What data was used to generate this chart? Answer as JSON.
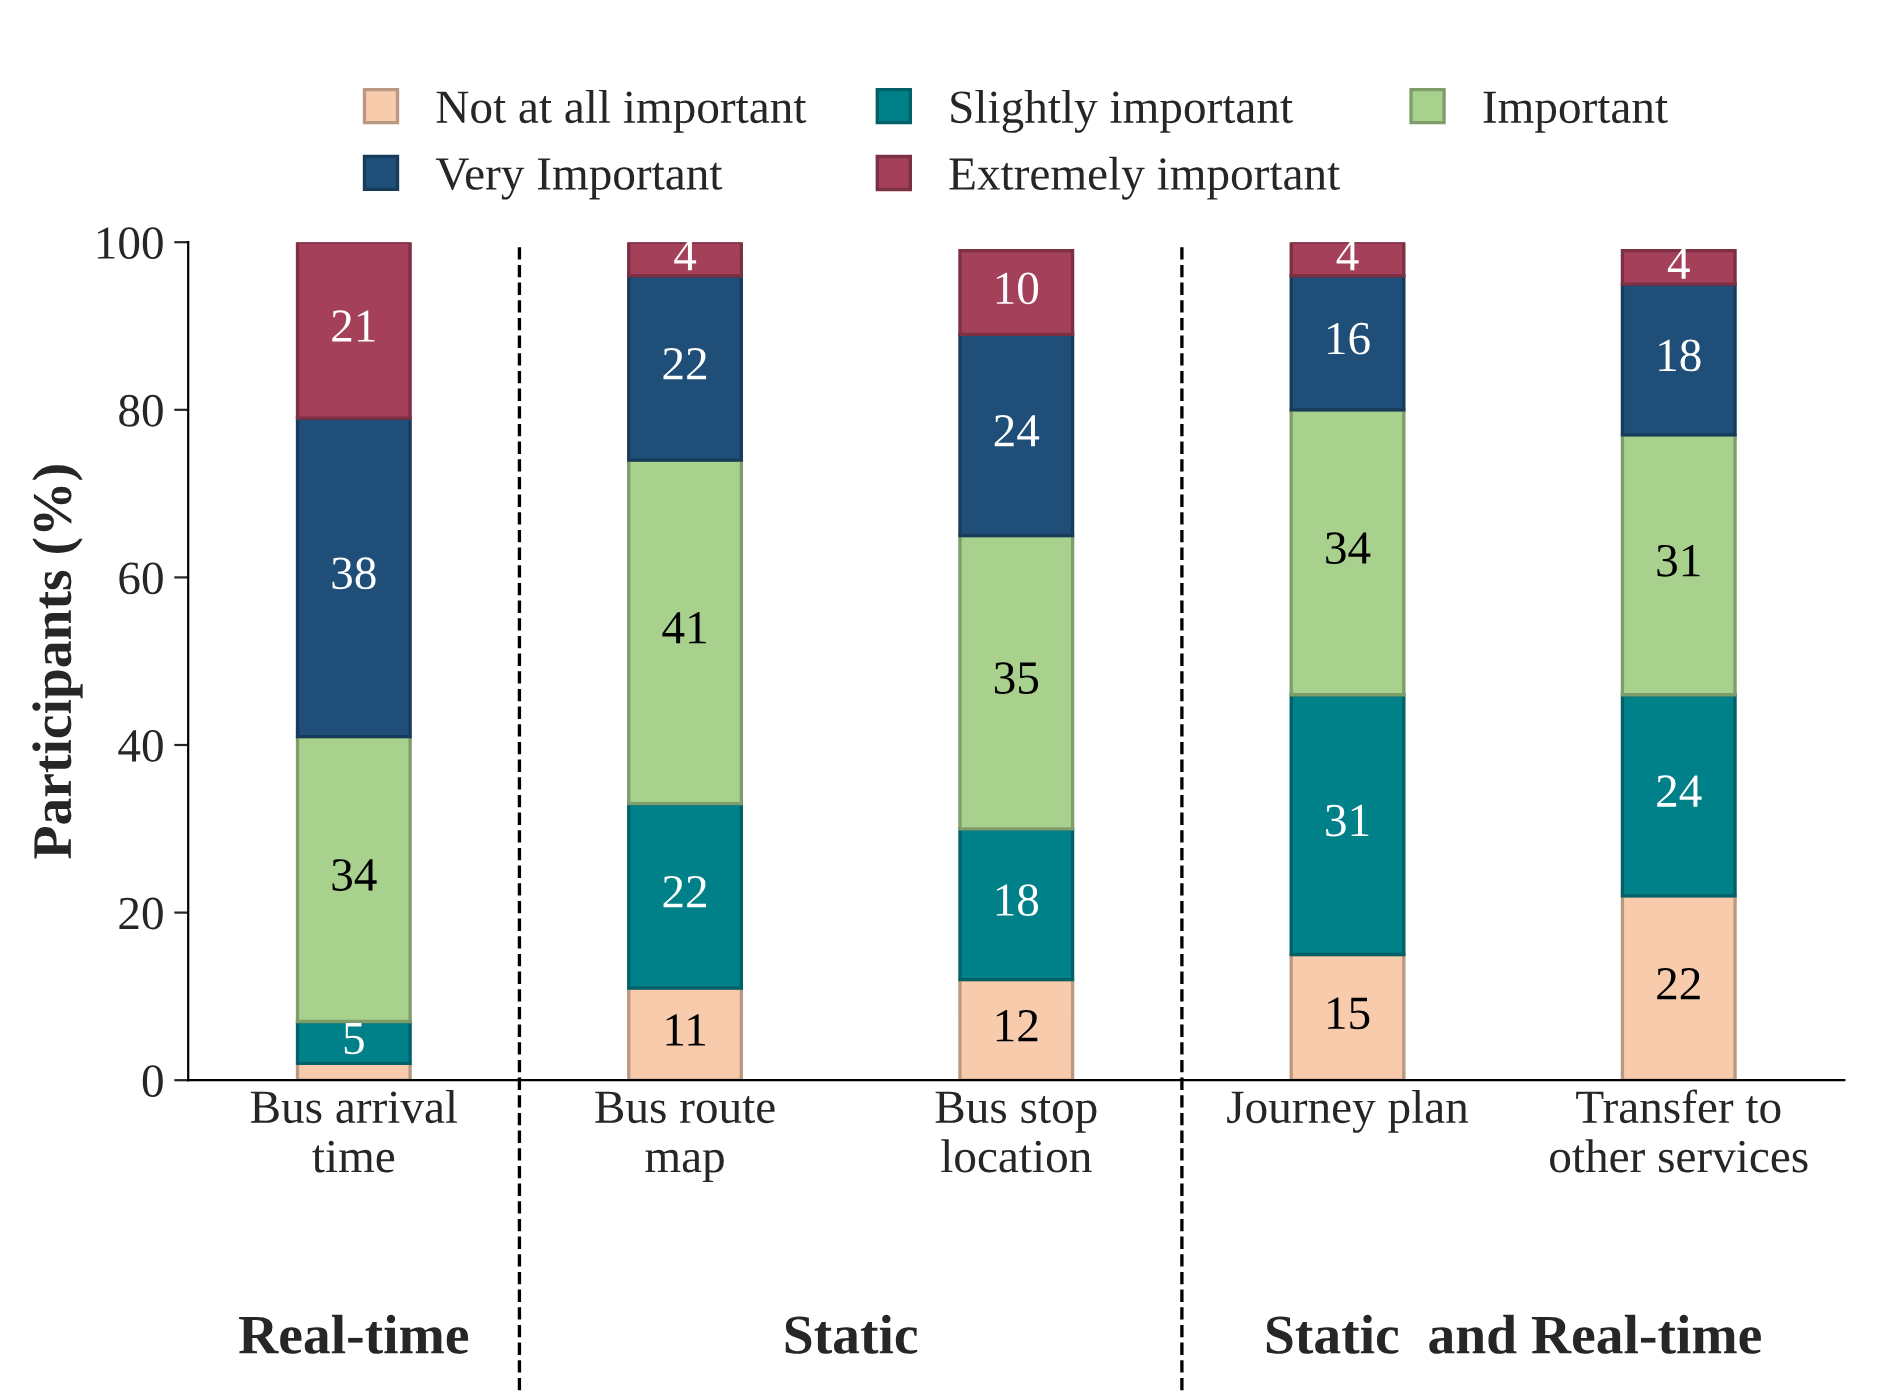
{
  "chart_data": {
    "type": "bar",
    "stacked": true,
    "ylabel": "Participants (%)",
    "categories": [
      "Bus arrival\ntime",
      "Bus route\nmap",
      "Bus stop\nlocation",
      "Journey plan",
      "Transfer to\nother services"
    ],
    "series": [
      {
        "name": "Not at all important",
        "color": "#f8cbad",
        "values": [
          2,
          11,
          12,
          15,
          22
        ],
        "value_labels": [
          null,
          "11",
          "12",
          "15",
          "22"
        ]
      },
      {
        "name": "Slightly important",
        "color": "#00818a",
        "values": [
          5,
          22,
          18,
          31,
          24
        ],
        "value_labels": [
          "5",
          "22",
          "18",
          "31",
          "24"
        ]
      },
      {
        "name": "Important",
        "color": "#a9d18e",
        "values": [
          34,
          41,
          35,
          34,
          31
        ],
        "value_labels": [
          "34",
          "41",
          "35",
          "34",
          "31"
        ]
      },
      {
        "name": "Very Important",
        "color": "#1f4e79",
        "values": [
          38,
          22,
          24,
          16,
          18
        ],
        "value_labels": [
          "38",
          "22",
          "24",
          "16",
          "18"
        ]
      },
      {
        "name": "Extremely important",
        "color": "#a5405a",
        "values": [
          21,
          4,
          10,
          4,
          4
        ],
        "value_labels": [
          "21",
          "4",
          "10",
          "4",
          "4"
        ]
      }
    ],
    "ylim": [
      0,
      100
    ],
    "yticks": [
      0,
      20,
      40,
      60,
      80,
      100
    ],
    "grid": false,
    "legend": "top",
    "annotations": [
      "Real-time",
      "Static",
      "Static  and Real-time"
    ]
  }
}
